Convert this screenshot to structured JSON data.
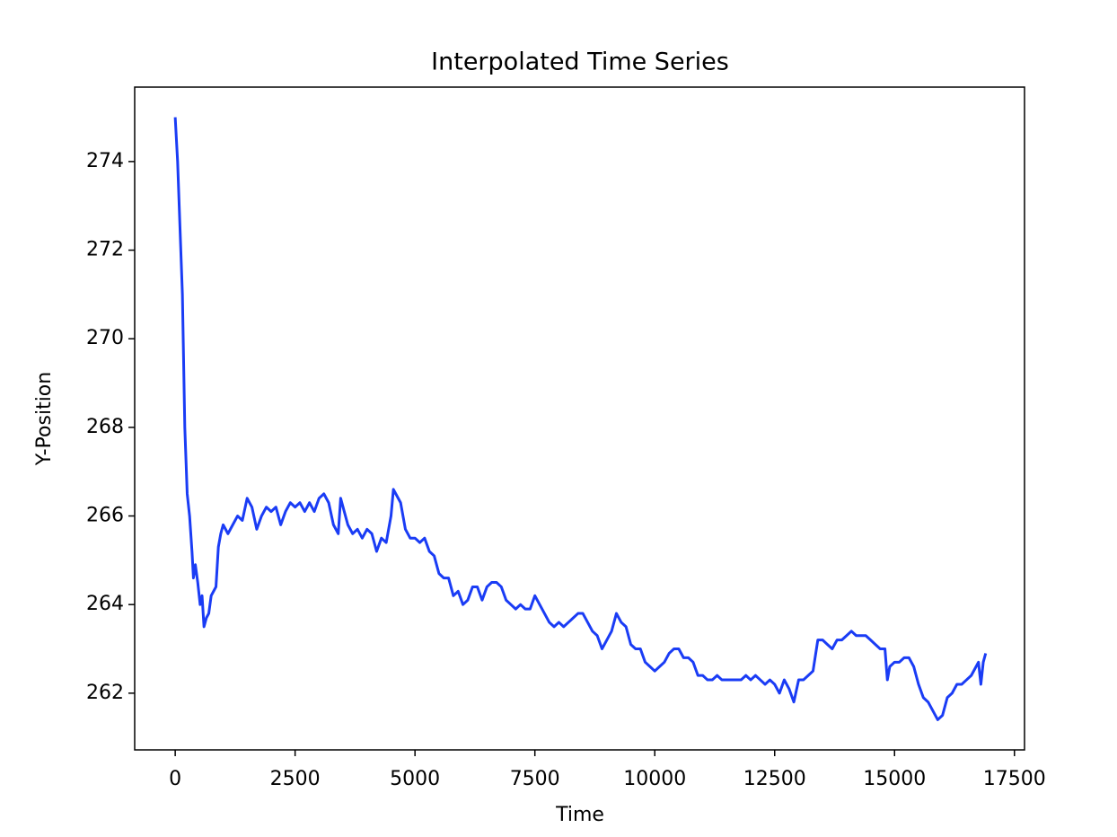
{
  "chart_data": {
    "type": "line",
    "title": "Interpolated Time Series",
    "xlabel": "Time",
    "ylabel": "Y-Position",
    "x": [
      0,
      50,
      150,
      200,
      250,
      300,
      350,
      380,
      420,
      470,
      520,
      560,
      600,
      650,
      700,
      750,
      800,
      850,
      900,
      950,
      1000,
      1100,
      1200,
      1300,
      1400,
      1500,
      1600,
      1700,
      1800,
      1900,
      2000,
      2100,
      2200,
      2300,
      2400,
      2500,
      2600,
      2700,
      2800,
      2900,
      3000,
      3100,
      3200,
      3300,
      3400,
      3450,
      3500,
      3600,
      3700,
      3800,
      3900,
      4000,
      4100,
      4200,
      4300,
      4400,
      4500,
      4550,
      4600,
      4700,
      4800,
      4900,
      5000,
      5100,
      5200,
      5300,
      5400,
      5500,
      5600,
      5700,
      5800,
      5900,
      6000,
      6100,
      6200,
      6300,
      6400,
      6500,
      6600,
      6700,
      6800,
      6900,
      7000,
      7100,
      7200,
      7300,
      7400,
      7500,
      7600,
      7700,
      7800,
      7900,
      8000,
      8100,
      8200,
      8300,
      8400,
      8500,
      8600,
      8700,
      8800,
      8900,
      9000,
      9100,
      9200,
      9300,
      9400,
      9500,
      9600,
      9700,
      9800,
      9900,
      10000,
      10100,
      10200,
      10300,
      10400,
      10500,
      10600,
      10700,
      10800,
      10900,
      11000,
      11100,
      11200,
      11300,
      11400,
      11500,
      11600,
      11700,
      11800,
      11900,
      12000,
      12100,
      12200,
      12300,
      12400,
      12500,
      12600,
      12700,
      12800,
      12900,
      13000,
      13100,
      13200,
      13300,
      13400,
      13500,
      13600,
      13700,
      13800,
      13900,
      14000,
      14100,
      14200,
      14300,
      14400,
      14500,
      14600,
      14700,
      14800,
      14850,
      14900,
      15000,
      15100,
      15200,
      15300,
      15400,
      15500,
      15600,
      15700,
      15800,
      15900,
      16000,
      16100,
      16200,
      16300,
      16400,
      16500,
      16600,
      16700,
      16750,
      16800,
      16850,
      16900
    ],
    "values": [
      275,
      274,
      271,
      268,
      266.5,
      266,
      265.2,
      264.6,
      264.9,
      264.5,
      264,
      264.2,
      263.5,
      263.7,
      263.8,
      264.2,
      264.3,
      264.4,
      265.3,
      265.6,
      265.8,
      265.6,
      265.8,
      266,
      265.9,
      266.4,
      266.2,
      265.7,
      266,
      266.2,
      266.1,
      266.2,
      265.8,
      266.1,
      266.3,
      266.2,
      266.3,
      266.1,
      266.3,
      266.1,
      266.4,
      266.5,
      266.3,
      265.8,
      265.6,
      266.4,
      266.2,
      265.8,
      265.6,
      265.7,
      265.5,
      265.7,
      265.6,
      265.2,
      265.5,
      265.4,
      266,
      266.6,
      266.5,
      266.3,
      265.7,
      265.5,
      265.5,
      265.4,
      265.5,
      265.2,
      265.1,
      264.7,
      264.6,
      264.6,
      264.2,
      264.3,
      264,
      264.1,
      264.4,
      264.4,
      264.1,
      264.4,
      264.5,
      264.5,
      264.4,
      264.1,
      264,
      263.9,
      264,
      263.9,
      263.9,
      264.2,
      264,
      263.8,
      263.6,
      263.5,
      263.6,
      263.5,
      263.6,
      263.7,
      263.8,
      263.8,
      263.6,
      263.4,
      263.3,
      263,
      263.2,
      263.4,
      263.8,
      263.6,
      263.5,
      263.1,
      263,
      263,
      262.7,
      262.6,
      262.5,
      262.6,
      262.7,
      262.9,
      263,
      263,
      262.8,
      262.8,
      262.7,
      262.4,
      262.4,
      262.3,
      262.3,
      262.4,
      262.3,
      262.3,
      262.3,
      262.3,
      262.3,
      262.4,
      262.3,
      262.4,
      262.3,
      262.2,
      262.3,
      262.2,
      262,
      262.3,
      262.1,
      261.8,
      262.3,
      262.3,
      262.4,
      262.5,
      263.2,
      263.2,
      263.1,
      263,
      263.2,
      263.2,
      263.3,
      263.4,
      263.3,
      263.3,
      263.3,
      263.2,
      263.1,
      263,
      263,
      262.3,
      262.6,
      262.7,
      262.7,
      262.8,
      262.8,
      262.6,
      262.2,
      261.9,
      261.8,
      261.6,
      261.4,
      261.5,
      261.9,
      262,
      262.2,
      262.2,
      262.3,
      262.4,
      262.6,
      262.7,
      262.2,
      262.7,
      262.9
    ],
    "color": "#1a3cf5",
    "xlim": [
      -845,
      17710
    ],
    "xticks": [
      0,
      2500,
      5000,
      7500,
      10000,
      12500,
      15000,
      17500
    ],
    "ylim": [
      260.72,
      275.68
    ],
    "yticks": [
      262,
      264,
      266,
      268,
      270,
      272,
      274
    ]
  }
}
